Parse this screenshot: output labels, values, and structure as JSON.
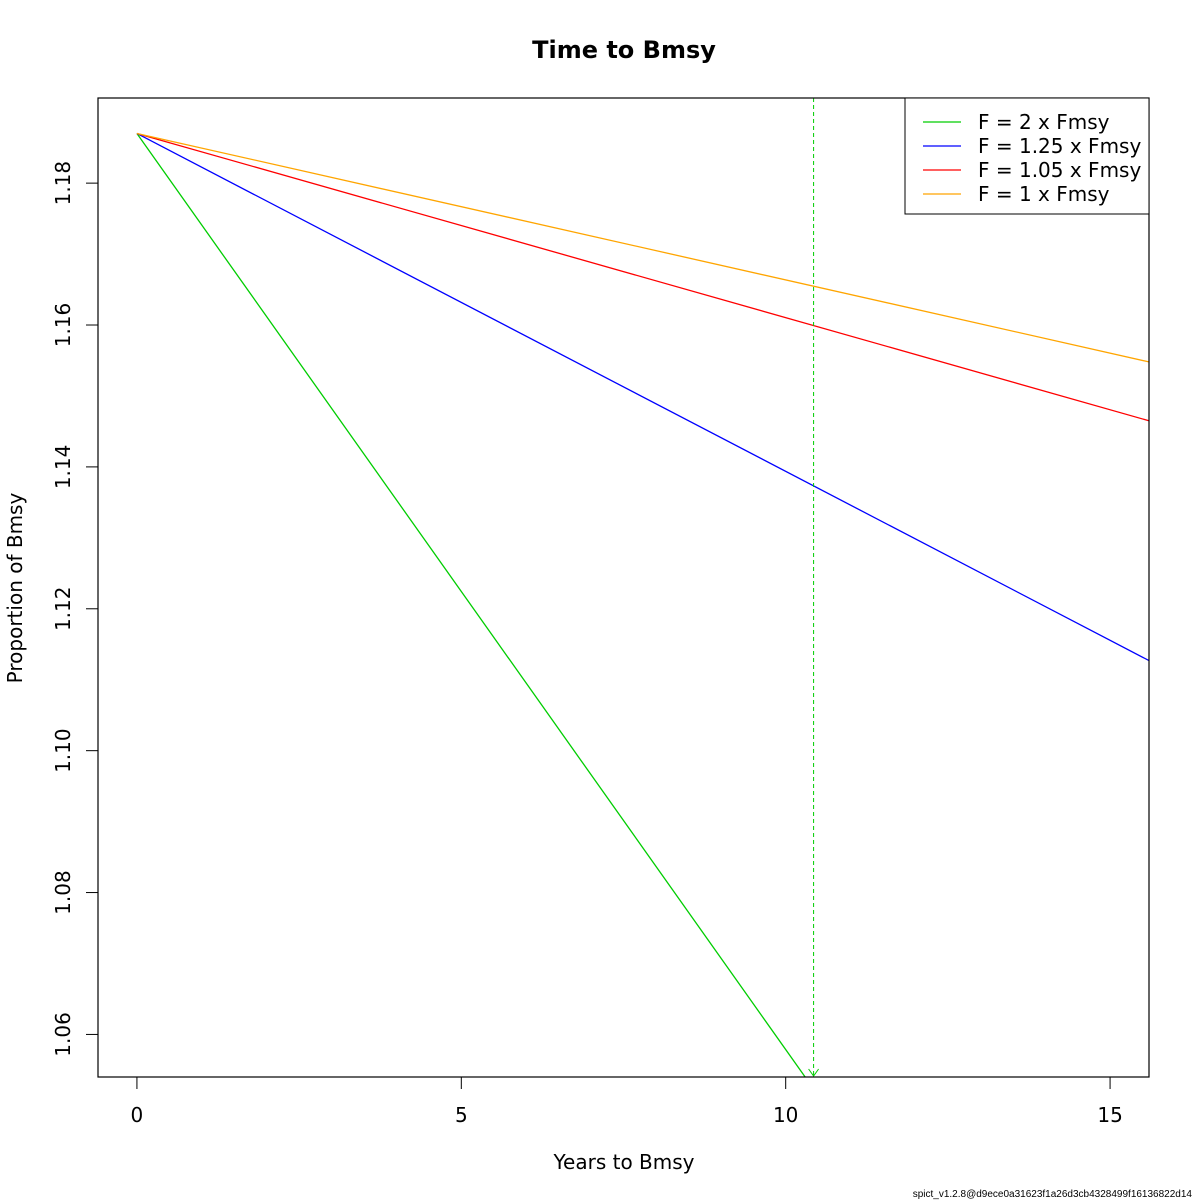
{
  "chart_data": {
    "type": "line",
    "title": "Time to Bmsy",
    "xlabel": "Years to Bmsy",
    "ylabel": "Proportion of Bmsy",
    "xlim": [
      -0.6,
      15.6
    ],
    "ylim": [
      1.054,
      1.192
    ],
    "x_ticks": [
      0,
      5,
      10,
      15
    ],
    "x_tick_labels": [
      "0",
      "5",
      "10",
      "15"
    ],
    "y_ticks": [
      1.06,
      1.08,
      1.1,
      1.12,
      1.14,
      1.16,
      1.18
    ],
    "y_tick_labels": [
      "1.06",
      "1.08",
      "1.10",
      "1.12",
      "1.14",
      "1.16",
      "1.18"
    ],
    "y_tick_labels_rotated": true,
    "grid": false,
    "legend_position": "top-right",
    "series": [
      {
        "name": "F = 2 x Fmsy",
        "color": "#00cd00",
        "x": [
          0,
          10.3
        ],
        "y": [
          1.187,
          1.054
        ]
      },
      {
        "name": "F = 1.25 x Fmsy",
        "color": "#0000ff",
        "x": [
          0,
          15.6
        ],
        "y": [
          1.187,
          1.1127
        ]
      },
      {
        "name": "F = 1.05 x Fmsy",
        "color": "#ff0000",
        "x": [
          0,
          15.6
        ],
        "y": [
          1.187,
          1.1465
        ]
      },
      {
        "name": "F = 1 x Fmsy",
        "color": "#ffa500",
        "x": [
          0,
          15.6
        ],
        "y": [
          1.187,
          1.1548
        ]
      }
    ],
    "reference_lines": [
      {
        "orientation": "vertical",
        "x": 10.43,
        "color": "#00cd00",
        "style": "dashed",
        "arrow": "down"
      }
    ]
  },
  "footnote": "spict_v1.2.8@d9ece0a31623f1a26d3cb4328499f16136822d14"
}
